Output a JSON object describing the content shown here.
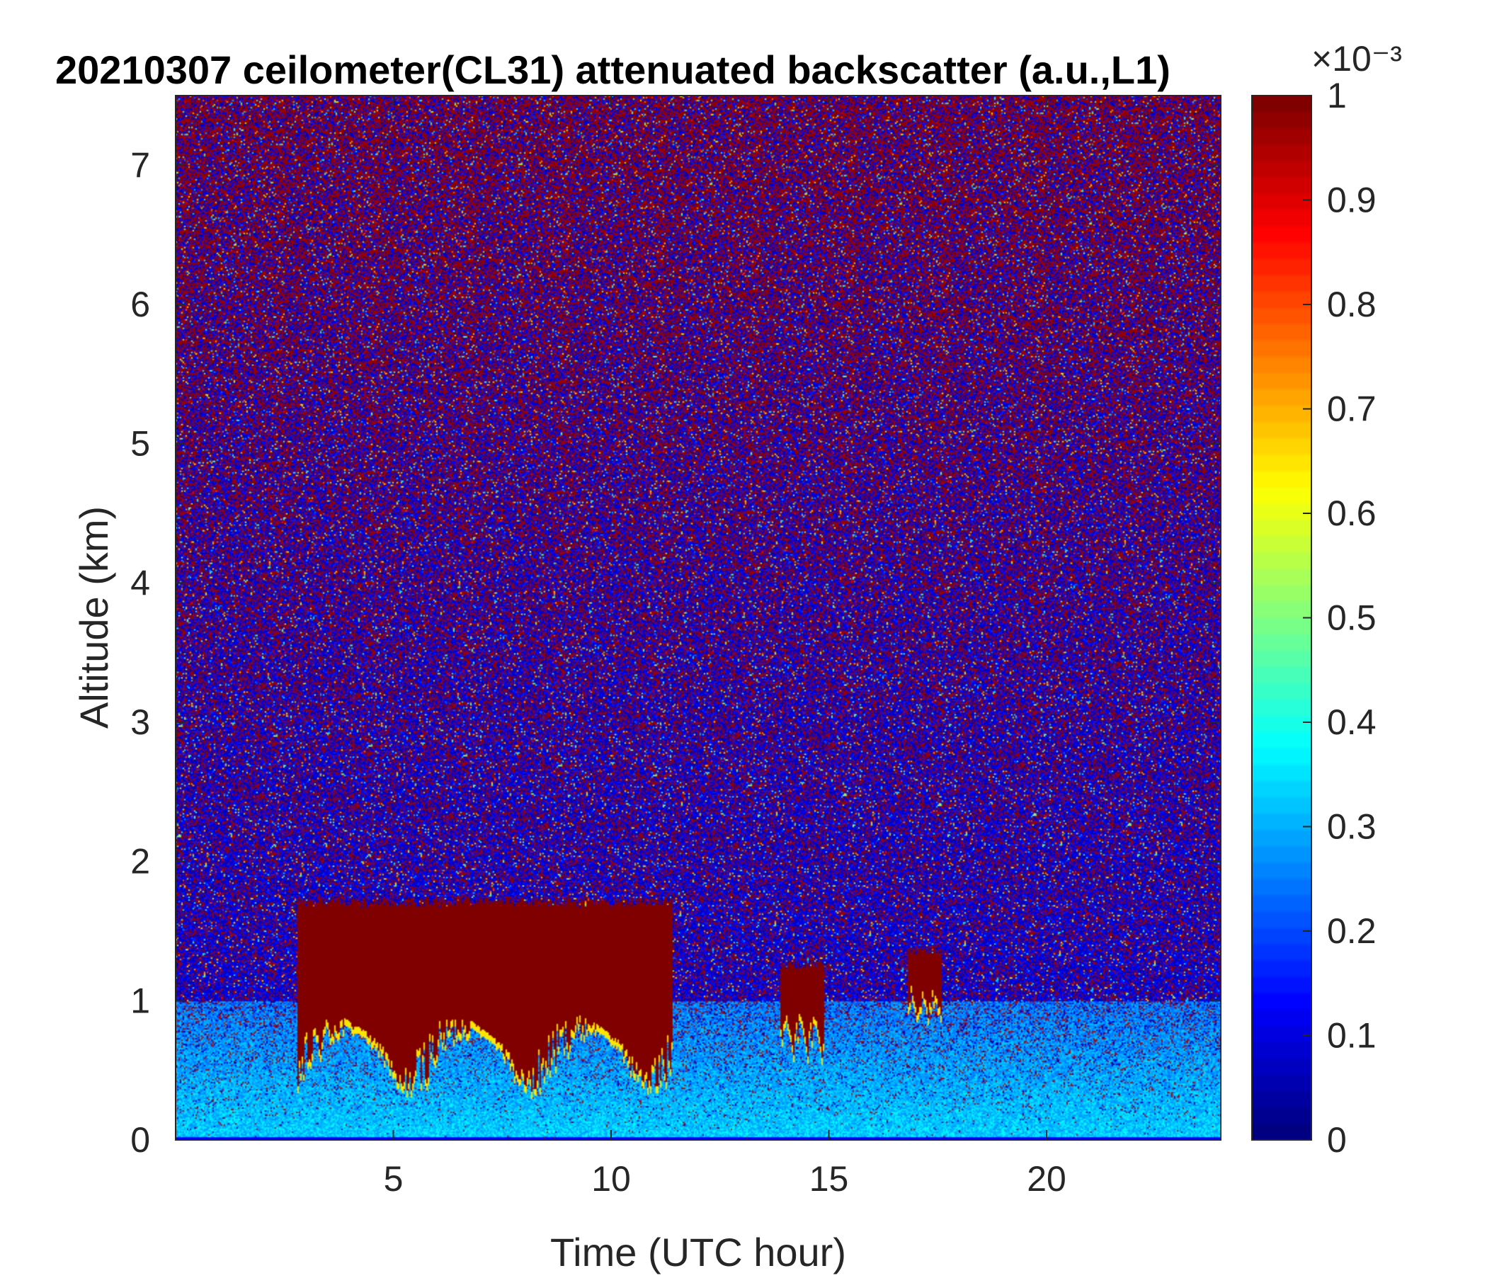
{
  "chart_data": {
    "type": "heatmap",
    "title": "20210307 ceilometer(CL31) attenuated backscatter (a.u.,L1)",
    "xlabel": "Time (UTC hour)",
    "ylabel": "Altitude (km)",
    "xlim": [
      0,
      24
    ],
    "ylim": [
      0,
      7.5
    ],
    "x_ticks": [
      5,
      10,
      15,
      20
    ],
    "y_ticks": [
      0,
      1,
      2,
      3,
      4,
      5,
      6,
      7
    ],
    "colorbar": {
      "colormap": "jet",
      "range": [
        0,
        1
      ],
      "ticks": [
        0,
        0.1,
        0.2,
        0.3,
        0.4,
        0.5,
        0.6,
        0.7,
        0.8,
        0.9,
        1
      ],
      "exponent_label": "×10⁻³"
    },
    "features": [
      {
        "time_range": [
          2.8,
          11.4
        ],
        "base_km": 0.3,
        "top_km": 1.75,
        "value": 1
      },
      {
        "time_range": [
          13.9,
          14.9
        ],
        "base_km": 0.55,
        "top_km": 1.3,
        "value": 1
      },
      {
        "time_range": [
          16.8,
          17.6
        ],
        "base_km": 0.8,
        "top_km": 1.4,
        "value": 1
      }
    ],
    "grid": false,
    "legend": "colorbar-right"
  }
}
